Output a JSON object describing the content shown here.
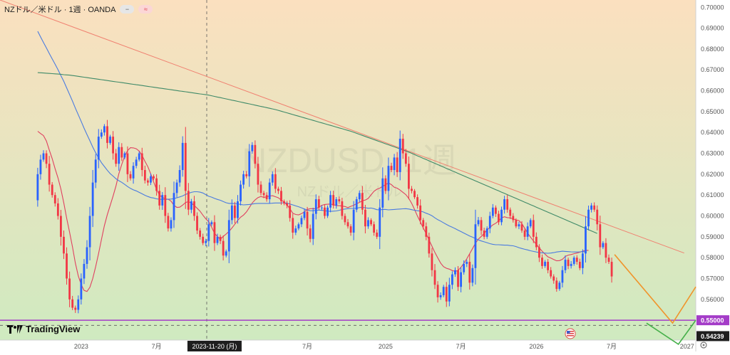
{
  "header": {
    "symbol_title": "NZドル／米ドル · 1週 · OANDA",
    "pill_minus": "−",
    "pill_wave": "≈"
  },
  "watermark": {
    "ticker": "NZDUSD, 1週",
    "pair_name": "NZドル／米ドル"
  },
  "branding": {
    "name": "TradingView"
  },
  "colors": {
    "bg_top": "#fbe0bf",
    "bg_bottom": "#cfeac0",
    "bull": "#2962ff",
    "bear": "#f23645",
    "ma_short": "#e04060",
    "ma_mid": "#4a7be0",
    "ma_long": "#3f8a68",
    "trendline": "#f08070",
    "support_line": "#a43cc8",
    "scenario_orange": "#f0942b",
    "scenario_green": "#46b04a"
  },
  "chart_data": {
    "type": "candlestick",
    "title": "NZDUSD, 1週",
    "y_axis": {
      "range": [
        0.5405,
        0.7035
      ],
      "ticks": [
        "0.70000",
        "0.69000",
        "0.68000",
        "0.67000",
        "0.66000",
        "0.65000",
        "0.64000",
        "0.63000",
        "0.62000",
        "0.61000",
        "0.60000",
        "0.59000",
        "0.58000",
        "0.57000",
        "0.56000"
      ],
      "price_labels": [
        {
          "value": 0.55,
          "text": "0.55000",
          "color": "#a43cc8"
        },
        {
          "value": 0.54239,
          "text": "0.54239",
          "color": "#ffffff"
        }
      ]
    },
    "x_axis": {
      "labels": [
        "2023",
        "7月",
        "2023-11-20 (月)",
        "7月",
        "2025",
        "7月",
        "2026",
        "7月",
        "2027"
      ],
      "crosshair_date": "2023-11-20 (月)"
    },
    "candles_start": "2022-09-19",
    "candle_closes": [
      0.62,
      0.627,
      0.63,
      0.625,
      0.615,
      0.61,
      0.606,
      0.6,
      0.59,
      0.582,
      0.57,
      0.56,
      0.556,
      0.555,
      0.56,
      0.57,
      0.577,
      0.585,
      0.6,
      0.616,
      0.627,
      0.638,
      0.64,
      0.643,
      0.635,
      0.638,
      0.63,
      0.625,
      0.633,
      0.628,
      0.63,
      0.62,
      0.618,
      0.624,
      0.627,
      0.63,
      0.622,
      0.617,
      0.616,
      0.619,
      0.618,
      0.612,
      0.605,
      0.61,
      0.6,
      0.594,
      0.598,
      0.611,
      0.616,
      0.622,
      0.635,
      0.612,
      0.603,
      0.607,
      0.6,
      0.593,
      0.59,
      0.587,
      0.588,
      0.596,
      0.597,
      0.587,
      0.59,
      0.588,
      0.581,
      0.583,
      0.598,
      0.605,
      0.599,
      0.607,
      0.615,
      0.62,
      0.619,
      0.631,
      0.634,
      0.625,
      0.615,
      0.611,
      0.61,
      0.608,
      0.616,
      0.62,
      0.613,
      0.612,
      0.607,
      0.606,
      0.605,
      0.599,
      0.592,
      0.594,
      0.596,
      0.599,
      0.602,
      0.594,
      0.589,
      0.601,
      0.608,
      0.604,
      0.604,
      0.6,
      0.604,
      0.61,
      0.605,
      0.608,
      0.607,
      0.6,
      0.597,
      0.595,
      0.592,
      0.603,
      0.608,
      0.611,
      0.603,
      0.595,
      0.598,
      0.596,
      0.592,
      0.59,
      0.604,
      0.618,
      0.612,
      0.624,
      0.622,
      0.628,
      0.621,
      0.637,
      0.63,
      0.625,
      0.613,
      0.612,
      0.609,
      0.605,
      0.598,
      0.595,
      0.59,
      0.582,
      0.574,
      0.567,
      0.561,
      0.562,
      0.566,
      0.559,
      0.567,
      0.572,
      0.574,
      0.566,
      0.573,
      0.577,
      0.578,
      0.568,
      0.575,
      0.596,
      0.598,
      0.593,
      0.59,
      0.594,
      0.6,
      0.604,
      0.601,
      0.597,
      0.603,
      0.608,
      0.603,
      0.6,
      0.598,
      0.595,
      0.596,
      0.593,
      0.59,
      0.595,
      0.598,
      0.59,
      0.585,
      0.58,
      0.576,
      0.578,
      0.574,
      0.571,
      0.569,
      0.565,
      0.568,
      0.574,
      0.579,
      0.576,
      0.577,
      0.58,
      0.578,
      0.575,
      0.582,
      0.595,
      0.603,
      0.605,
      0.603,
      0.596,
      0.585,
      0.587,
      0.58,
      0.578,
      0.571
    ],
    "series": [
      {
        "name": "SMA 13",
        "values": [
          0.6406,
          0.6395,
          0.6385,
          0.6359,
          0.6316,
          0.6275,
          0.6226,
          0.6183,
          0.6129,
          0.6062,
          0.5989,
          0.5922,
          0.5851,
          0.5774,
          0.5713,
          0.5671,
          0.5643,
          0.5638,
          0.5658,
          0.57,
          0.5757,
          0.582,
          0.5887,
          0.5953,
          0.6006,
          0.605,
          0.6095,
          0.6144,
          0.6202,
          0.6247,
          0.6286,
          0.6313,
          0.6327,
          0.6326,
          0.6322,
          0.6311,
          0.629,
          0.6262,
          0.6236,
          0.6201,
          0.6163,
          0.6127,
          0.61,
          0.6089,
          0.6082,
          0.608,
          0.6071,
          0.6051,
          0.6041,
          0.6042,
          0.6052,
          0.6064,
          0.6069,
          0.6062,
          0.605,
          0.6037,
          0.6023,
          0.6003,
          0.5986,
          0.5972,
          0.5946,
          0.5917,
          0.5901,
          0.5888,
          0.5902,
          0.5913,
          0.5926,
          0.5942,
          0.596,
          0.5979,
          0.5994,
          0.6004,
          0.6019,
          0.604,
          0.6062,
          0.6077,
          0.6088,
          0.6093,
          0.6089,
          0.6091,
          0.6096,
          0.6097,
          0.6092,
          0.6087,
          0.6076,
          0.6066,
          0.6053,
          0.6034,
          0.6013,
          0.6007,
          0.6005,
          0.6011,
          0.602,
          0.6031,
          0.6035,
          0.6035,
          0.6035,
          0.6041,
          0.6051,
          0.6055,
          0.6056,
          0.6057,
          0.6054,
          0.605,
          0.6049,
          0.6047,
          0.6045,
          0.604,
          0.6046,
          0.6051,
          0.6059,
          0.6065,
          0.6073,
          0.6076,
          0.6084,
          0.6101,
          0.6118,
          0.6128,
          0.6133,
          0.6142,
          0.615,
          0.6158,
          0.615,
          0.6137,
          0.6133,
          0.6124,
          0.6113,
          0.6102,
          0.6084,
          0.606,
          0.6031,
          0.5999,
          0.5971,
          0.5942,
          0.5915,
          0.5884,
          0.5855,
          0.5825,
          0.5799,
          0.5774,
          0.5757,
          0.5749,
          0.5745,
          0.5738,
          0.5734,
          0.5739,
          0.5754,
          0.5773,
          0.5794,
          0.5819,
          0.5844,
          0.5869,
          0.5889,
          0.5902,
          0.5916,
          0.5933,
          0.5945,
          0.5957,
          0.5965,
          0.5976,
          0.5991,
          0.5996,
          0.5992,
          0.5991,
          0.5986,
          0.5981,
          0.5978,
          0.5963,
          0.5941,
          0.5918,
          0.5898,
          0.588,
          0.5864,
          0.5847,
          0.5831,
          0.5817,
          0.5804,
          0.5798,
          0.5791,
          0.5785,
          0.5786,
          0.5792,
          0.5806,
          0.5812,
          0.5815,
          0.5819,
          0.5822,
          0.5826,
          0.5831,
          0.5835,
          0.5835
        ]
      },
      {
        "name": "SMA 52",
        "values": [
          0.6885,
          0.6858,
          0.6831,
          0.6805,
          0.6779,
          0.6753,
          0.6727,
          0.6701,
          0.6673,
          0.6645,
          0.6614,
          0.6582,
          0.655,
          0.6517,
          0.6485,
          0.6453,
          0.6421,
          0.639,
          0.636,
          0.633,
          0.6303,
          0.6278,
          0.6255,
          0.6237,
          0.6219,
          0.6203,
          0.6191,
          0.6178,
          0.6169,
          0.6161,
          0.6151,
          0.6141,
          0.6132,
          0.6125,
          0.612,
          0.6113,
          0.6106,
          0.6099,
          0.6093,
          0.6088,
          0.6086,
          0.6082,
          0.608,
          0.6079,
          0.6079,
          0.608,
          0.6081,
          0.6083,
          0.6087,
          0.6091,
          0.6096,
          0.6103,
          0.6108,
          0.6113,
          0.6116,
          0.6116,
          0.6114,
          0.611,
          0.6102,
          0.6094,
          0.609,
          0.6084,
          0.6079,
          0.6075,
          0.6069,
          0.6063,
          0.606,
          0.606,
          0.6059,
          0.6058,
          0.6055,
          0.6053,
          0.6054,
          0.6055,
          0.6057,
          0.6059,
          0.606,
          0.606,
          0.606,
          0.606,
          0.606,
          0.6061,
          0.6062,
          0.6062,
          0.6062,
          0.6063,
          0.6061,
          0.6057,
          0.6053,
          0.6048,
          0.6044,
          0.6039,
          0.6033,
          0.6028,
          0.6025,
          0.6025,
          0.6027,
          0.6028,
          0.6027,
          0.6025,
          0.6023,
          0.6022,
          0.6023,
          0.6024,
          0.6027,
          0.6031,
          0.6033,
          0.6035,
          0.6036,
          0.6036,
          0.6037,
          0.604,
          0.6042,
          0.6039,
          0.6037,
          0.6038,
          0.6035,
          0.603,
          0.6029,
          0.6031,
          0.6031,
          0.6029,
          0.603,
          0.6031,
          0.6032,
          0.6033,
          0.6034,
          0.6035,
          0.6033,
          0.603,
          0.6027,
          0.6025,
          0.6023,
          0.6019,
          0.6013,
          0.6008,
          0.6001,
          0.5991,
          0.5982,
          0.5975,
          0.5967,
          0.5959,
          0.5952,
          0.5946,
          0.5939,
          0.5932,
          0.5925,
          0.5918,
          0.5911,
          0.5904,
          0.5898,
          0.5892,
          0.5885,
          0.588,
          0.5876,
          0.5872,
          0.5867,
          0.5864,
          0.5862,
          0.5862,
          0.5861,
          0.586,
          0.586,
          0.5858,
          0.5857,
          0.5853,
          0.5848,
          0.5844,
          0.584,
          0.5837,
          0.5833,
          0.583,
          0.5827,
          0.5824,
          0.5823,
          0.5822,
          0.5821,
          0.5822,
          0.5824,
          0.5827,
          0.5829,
          0.5831,
          0.583,
          0.5829,
          0.5828,
          0.5827,
          0.5827,
          0.5828,
          0.5829,
          0.5828
        ]
      },
      {
        "name": "SMA 200",
        "values": [
          0.6687,
          0.6686,
          0.6685,
          0.6684,
          0.6683,
          0.6682,
          0.6681,
          0.668,
          0.6679,
          0.6677,
          0.6676,
          0.6675,
          0.6673,
          0.6671,
          0.6669,
          0.6667,
          0.6665,
          0.6663,
          0.6661,
          0.6659,
          0.6657,
          0.6655,
          0.6653,
          0.6651,
          0.6649,
          0.6647,
          0.6645,
          0.6643,
          0.6641,
          0.6639,
          0.6637,
          0.6635,
          0.6633,
          0.6631,
          0.6629,
          0.6627,
          0.6625,
          0.6623,
          0.6621,
          0.6619,
          0.6617,
          0.6615,
          0.6613,
          0.6611,
          0.6609,
          0.6607,
          0.6605,
          0.6603,
          0.6601,
          0.6599,
          0.6597,
          0.6595,
          0.6593,
          0.6591,
          0.6589,
          0.6587,
          0.6585,
          0.6583,
          0.6581,
          0.6579,
          0.6576,
          0.6573,
          0.657,
          0.6567,
          0.6564,
          0.6561,
          0.6558,
          0.6555,
          0.6552,
          0.6549,
          0.6546,
          0.6543,
          0.654,
          0.6537,
          0.6534,
          0.6531,
          0.6528,
          0.6525,
          0.6522,
          0.6519,
          0.6516,
          0.6513,
          0.651,
          0.6506,
          0.6502,
          0.6498,
          0.6494,
          0.649,
          0.6486,
          0.6482,
          0.6478,
          0.6474,
          0.647,
          0.6466,
          0.6462,
          0.6458,
          0.6454,
          0.645,
          0.6446,
          0.6442,
          0.6438,
          0.6434,
          0.643,
          0.6426,
          0.6422,
          0.6418,
          0.6414,
          0.641,
          0.6406,
          0.6401,
          0.6396,
          0.6391,
          0.6386,
          0.6381,
          0.6376,
          0.6371,
          0.6366,
          0.6361,
          0.6356,
          0.6351,
          0.6346,
          0.6341,
          0.6336,
          0.6331,
          0.6326,
          0.6321,
          0.6316,
          0.6311,
          0.6306,
          0.63,
          0.6294,
          0.6288,
          0.6282,
          0.6276,
          0.627,
          0.6264,
          0.6258,
          0.6252,
          0.6246,
          0.624,
          0.6234,
          0.6228,
          0.6222,
          0.6216,
          0.621,
          0.6204,
          0.6198,
          0.6192,
          0.6186,
          0.618,
          0.6174,
          0.6168,
          0.6162,
          0.6156,
          0.615,
          0.6144,
          0.6138,
          0.6132,
          0.6126,
          0.612,
          0.6114,
          0.6108,
          0.6102,
          0.6096,
          0.609,
          0.6084,
          0.6078,
          0.6072,
          0.6066,
          0.606,
          0.6054,
          0.6048,
          0.6042,
          0.6036,
          0.603,
          0.6024,
          0.6018,
          0.6012,
          0.6006,
          0.6,
          0.5994,
          0.5988,
          0.5982,
          0.5976,
          0.597,
          0.5964,
          0.5958,
          0.5952,
          0.5946,
          0.594,
          0.5934,
          0.5928,
          0.5922,
          0.5916
        ]
      }
    ],
    "horizontal_line": 0.55,
    "trendline": {
      "from": [
        "2022-06-20",
        0.7035
      ],
      "to": [
        "2026-12-28",
        0.5822
      ]
    },
    "scenarios": [
      {
        "color": "orange",
        "points": [
          [
            "2026-07-13",
            0.5815
          ],
          [
            "2026-11-30",
            0.5486
          ],
          [
            "2027-01-25",
            0.566
          ]
        ]
      },
      {
        "color": "green",
        "points": [
          [
            "2026-09-28",
            0.5486
          ],
          [
            "2026-12-14",
            0.5385
          ],
          [
            "2027-01-25",
            0.55
          ]
        ]
      }
    ]
  }
}
